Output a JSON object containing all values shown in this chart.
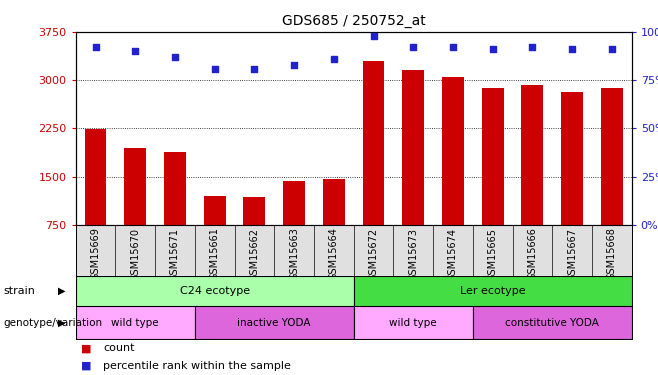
{
  "title": "GDS685 / 250752_at",
  "samples": [
    "GSM15669",
    "GSM15670",
    "GSM15671",
    "GSM15661",
    "GSM15662",
    "GSM15663",
    "GSM15664",
    "GSM15672",
    "GSM15673",
    "GSM15674",
    "GSM15665",
    "GSM15666",
    "GSM15667",
    "GSM15668"
  ],
  "counts": [
    2240,
    1940,
    1880,
    1195,
    1185,
    1440,
    1460,
    3290,
    3155,
    3050,
    2880,
    2920,
    2820,
    2880
  ],
  "percentiles": [
    92,
    90,
    87,
    81,
    81,
    83,
    86,
    98,
    92,
    92,
    91,
    92,
    91,
    91
  ],
  "ylim_left": [
    750,
    3750
  ],
  "ylim_right": [
    0,
    100
  ],
  "yticks_left": [
    750,
    1500,
    2250,
    3000,
    3750
  ],
  "yticks_right": [
    0,
    25,
    50,
    75,
    100
  ],
  "bar_color": "#cc0000",
  "dot_color": "#2222cc",
  "strain_labels": [
    {
      "text": "C24 ecotype",
      "start": 0,
      "end": 7,
      "color": "#aaffaa"
    },
    {
      "text": "Ler ecotype",
      "start": 7,
      "end": 14,
      "color": "#44dd44"
    }
  ],
  "genotype_labels": [
    {
      "text": "wild type",
      "start": 0,
      "end": 3,
      "color": "#ffaaff"
    },
    {
      "text": "inactive YODA",
      "start": 3,
      "end": 7,
      "color": "#dd66dd"
    },
    {
      "text": "wild type",
      "start": 7,
      "end": 10,
      "color": "#ffaaff"
    },
    {
      "text": "constitutive YODA",
      "start": 10,
      "end": 14,
      "color": "#dd66dd"
    }
  ],
  "legend_count_color": "#cc0000",
  "legend_percentile_color": "#2222cc",
  "label_strain": "strain",
  "label_genotype": "genotype/variation",
  "legend_count_text": "count",
  "legend_pct_text": "percentile rank within the sample"
}
